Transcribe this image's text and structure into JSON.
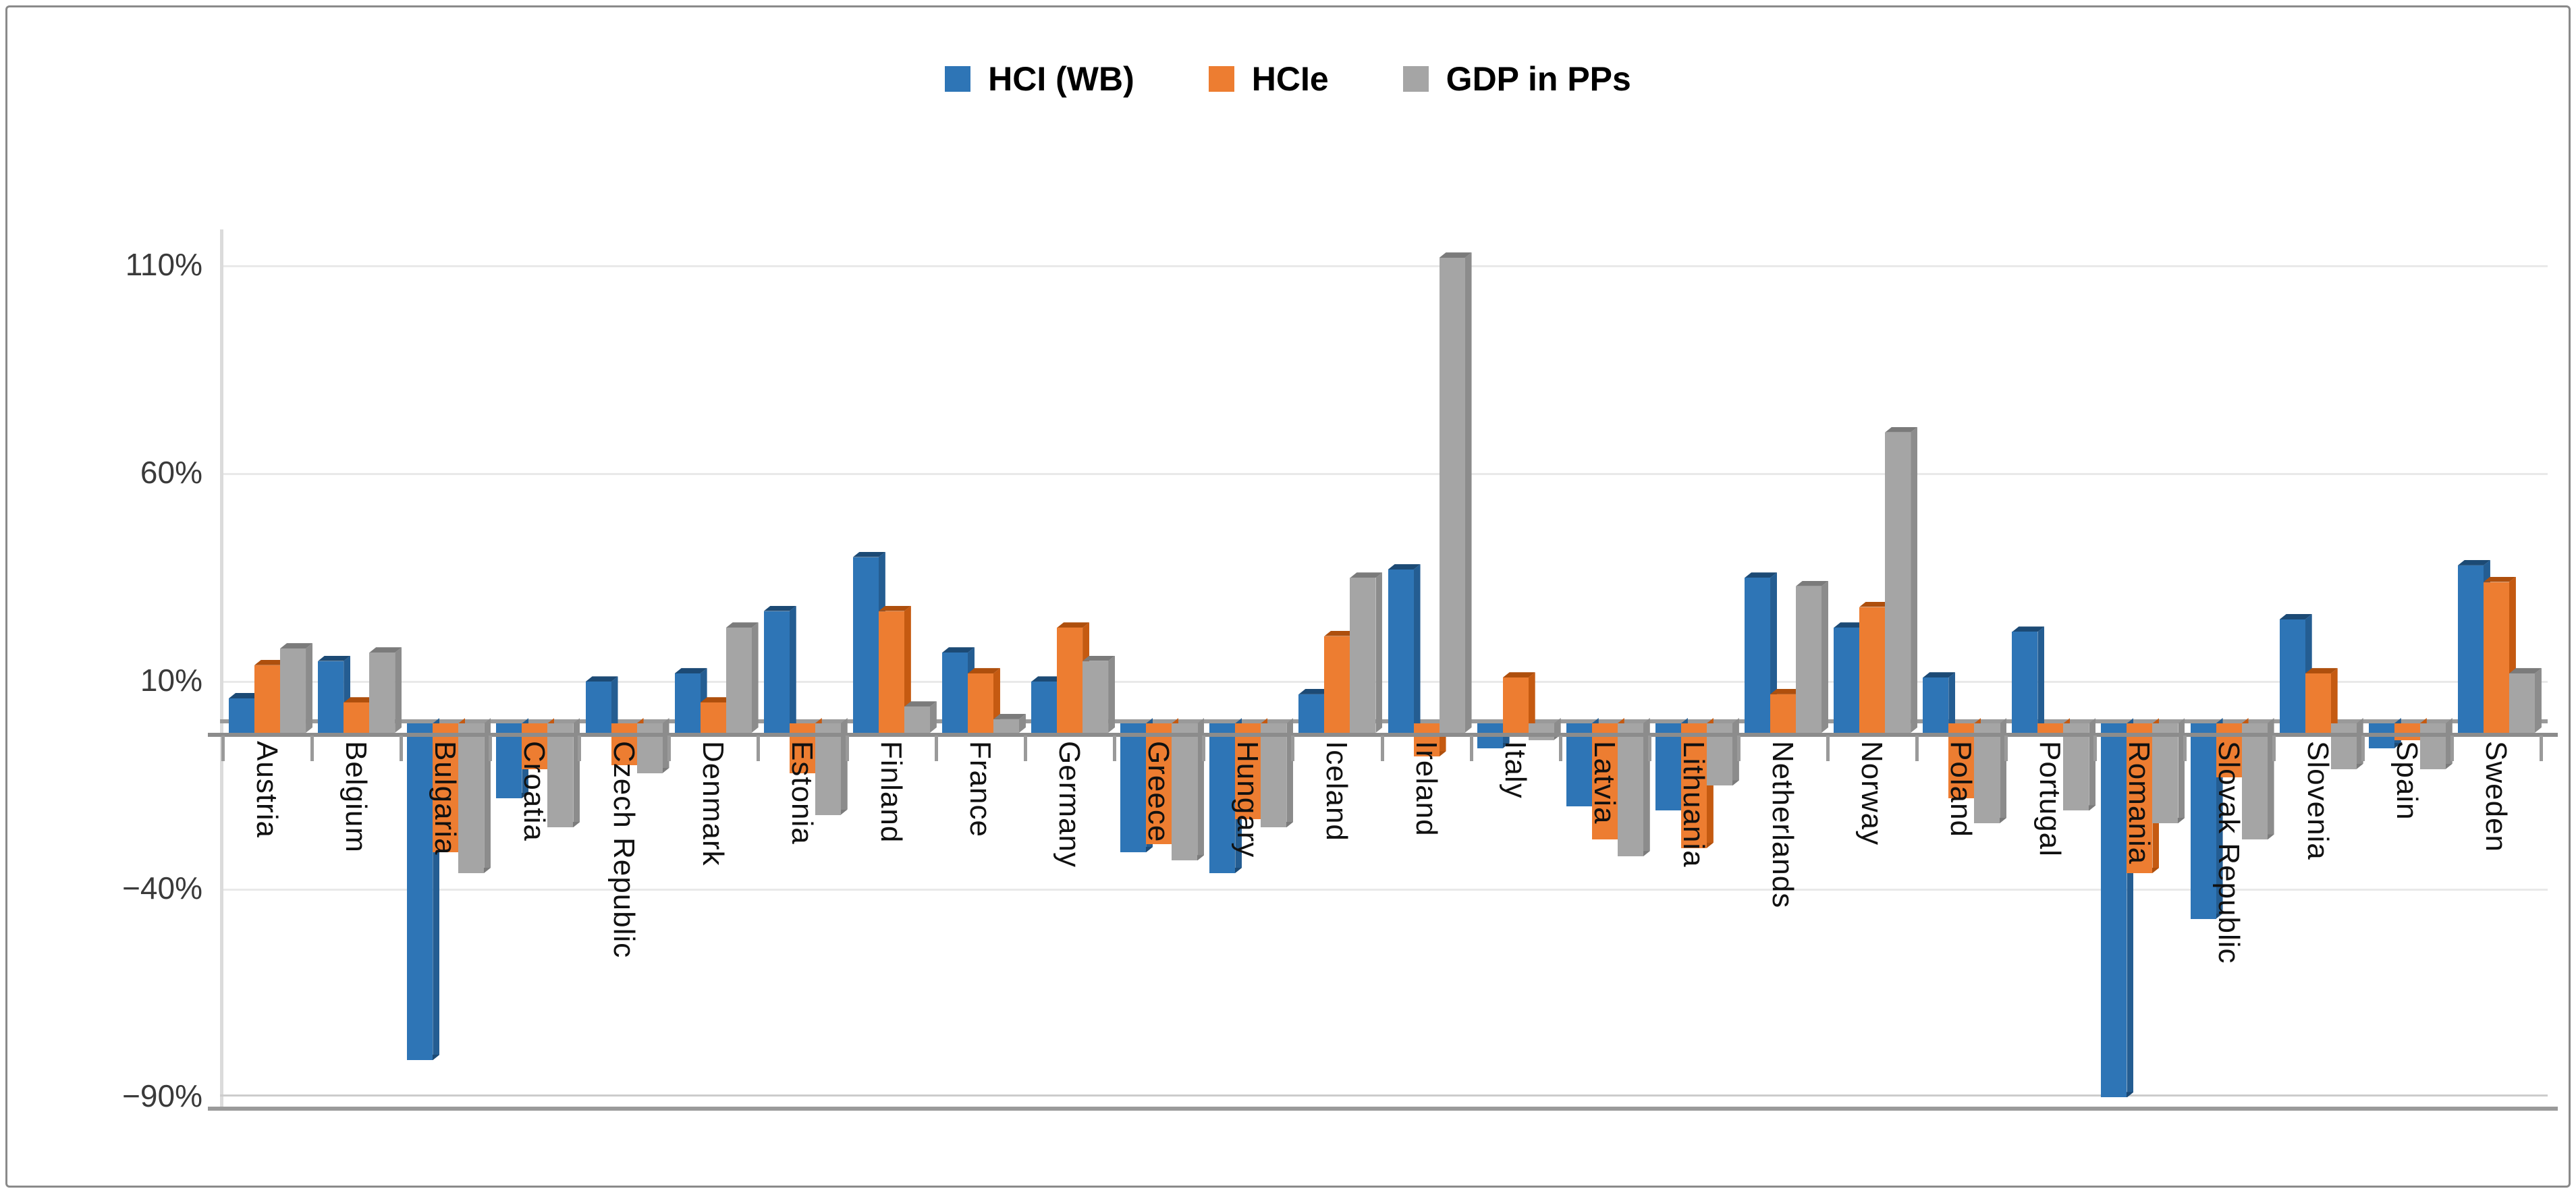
{
  "legend": {
    "items": [
      {
        "label": "HCI (WB)"
      },
      {
        "label": "HCIe"
      },
      {
        "label": "GDP in PPs"
      }
    ]
  },
  "chart_data": {
    "type": "bar",
    "title": "",
    "xlabel": "",
    "ylabel": "",
    "grid": true,
    "legend_position": "top-center",
    "ylim": [
      -95,
      118
    ],
    "yticks": [
      {
        "label": "110%",
        "value": 110
      },
      {
        "label": "60%",
        "value": 60
      },
      {
        "label": "10%",
        "value": 10
      },
      {
        "label": "−40%",
        "value": -40
      },
      {
        "label": "−90%",
        "value": -90
      }
    ],
    "categories": [
      "Austria",
      "Belgium",
      "Bulgaria",
      "Croatia",
      "Czech Republic",
      "Denmark",
      "Estonia",
      "Finland",
      "France",
      "Germany",
      "Greece",
      "Hungary",
      "Iceland",
      "Ireland",
      "Italy",
      "Latvia",
      "Lithuania",
      "Netherlands",
      "Norway",
      "Poland",
      "Portugal",
      "Romania",
      "Slovak Republic",
      "Slovenia",
      "Spain",
      "Sweden"
    ],
    "series": [
      {
        "name": "HCI (WB)",
        "color": "#2E75B6",
        "color_side": "#245D92",
        "color_dark": "#1C4A75",
        "values": [
          6,
          15,
          -81,
          -18,
          10,
          12,
          27,
          40,
          17,
          10,
          -31,
          -36,
          7,
          37,
          -6,
          -20,
          -21,
          35,
          23,
          11,
          22,
          -90,
          -47,
          25,
          -6,
          38
        ]
      },
      {
        "name": "HCIe",
        "color": "#ED7D31",
        "color_side": "#C55A11",
        "color_dark": "#AE4F0D",
        "values": [
          14,
          5,
          -31,
          -11,
          -10,
          5,
          -12,
          27,
          12,
          23,
          -29,
          -23,
          21,
          -8,
          11,
          -28,
          -30,
          7,
          28,
          -18,
          -3,
          -36,
          -13,
          12,
          -4,
          34
        ]
      },
      {
        "name": "GDP in PPs",
        "color": "#A5A5A5",
        "color_side": "#8C8C8C",
        "color_dark": "#7B7B7B",
        "values": [
          18,
          17,
          -36,
          -25,
          -12,
          23,
          -22,
          4,
          1,
          15,
          -33,
          -25,
          35,
          112,
          -4,
          -32,
          -15,
          33,
          70,
          -24,
          -21,
          -24,
          -28,
          -11,
          -11,
          12
        ]
      }
    ]
  }
}
